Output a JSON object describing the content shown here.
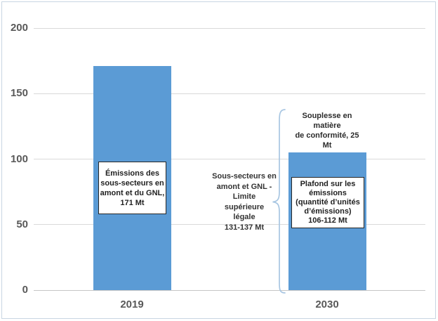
{
  "chart_data": {
    "type": "bar",
    "title": "",
    "categories": [
      "2019",
      "2030"
    ],
    "y_ticks": [
      0,
      50,
      100,
      150,
      200
    ],
    "ylim": [
      0,
      200
    ],
    "grid": true,
    "legend": "none",
    "series": [
      {
        "name": "Émissions / Plafond sur les émissions (segment plein)",
        "values": [
          171,
          109
        ],
        "pattern": "solid",
        "color": "#5B9BD5"
      },
      {
        "name": "Souplesse en matière de conformité (segment hachuré)",
        "values": [
          0,
          25
        ],
        "pattern": "hatched",
        "color": "#5B9BD5"
      }
    ],
    "annotations": {
      "bar_2019": "Émissions des\nsous-secteurs en\namont et du GNL,\n171 Mt",
      "flexibility": "Souplesse en matière\nde conformité, 25 Mt",
      "cap": "Plafond sur les\némissions\n(quantité d’unités\nd’émissions)\n106-112 Mt",
      "bracket": "Sous-secteurs en\namont et GNL -\nLimite\nsupérieure\nlégale\n131-137 Mt"
    }
  },
  "colors": {
    "bar": "#5B9BD5",
    "hatch_stripe": "#5B9BD5",
    "gridline": "#D9D9D9",
    "axis_text": "#595959",
    "brace": "#A8C6E2",
    "frame_border": "#C9D6E2"
  }
}
